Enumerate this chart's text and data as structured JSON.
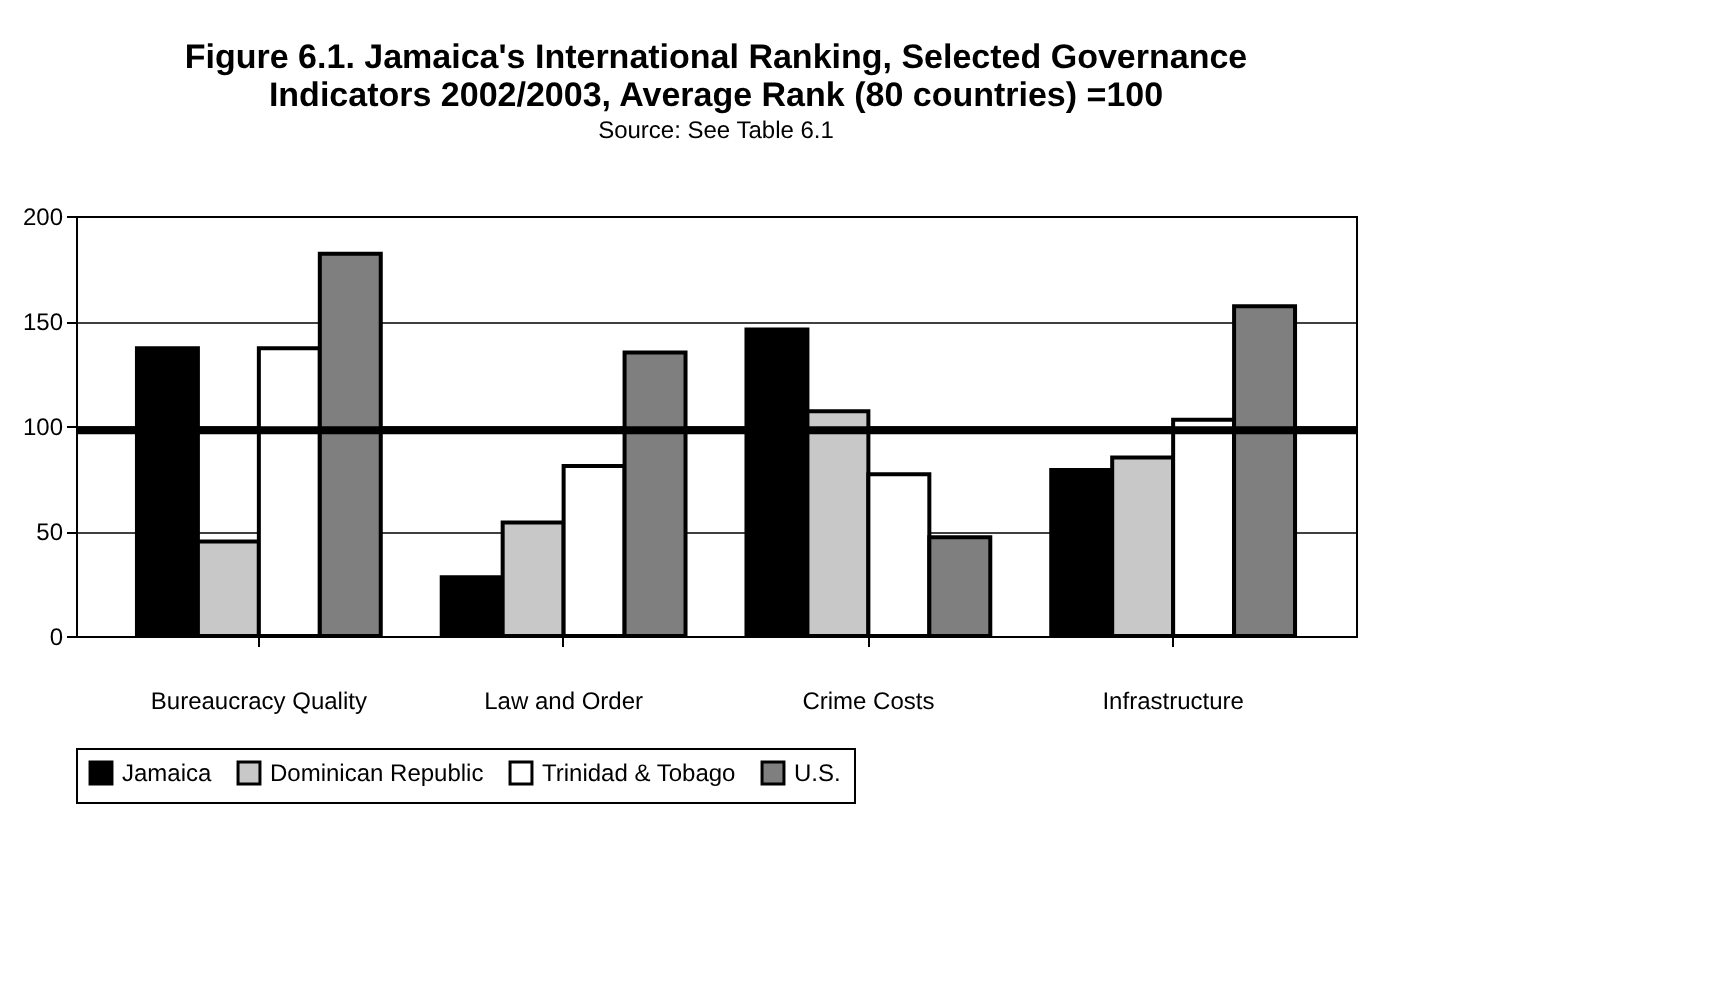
{
  "chart_data": {
    "type": "bar",
    "title": [
      "Figure 6.1.  Jamaica's International Ranking, Selected Governance",
      "Indicators 2002/2003,  Average Rank (80 countries) =100"
    ],
    "categories": [
      "Bureaucracy Quality",
      "Law and Order",
      "Crime Costs",
      "Infrastructure"
    ],
    "series": [
      {
        "name": "Jamaica",
        "color": "#000000",
        "values": [
          137,
          28,
          146,
          79
        ]
      },
      {
        "name": "Dominican Republic",
        "color": "#c8c8c8",
        "values": [
          45,
          54,
          107,
          85
        ]
      },
      {
        "name": "Trinidad & Tobago",
        "color": "#ffffff",
        "values": [
          137,
          81,
          77,
          103
        ]
      },
      {
        "name": "U.S.",
        "color": "#7f7f7f",
        "values": [
          182,
          135,
          47,
          157
        ]
      }
    ],
    "ylim": [
      0,
      200
    ],
    "yticks": [
      0,
      50,
      100,
      150,
      200
    ],
    "grid": "y",
    "legend": "bottom",
    "ref_lines": [
      {
        "axis": "y",
        "value": 98,
        "color": "#000000"
      }
    ],
    "annotations": [
      "Source:  See Table 6.1"
    ]
  }
}
